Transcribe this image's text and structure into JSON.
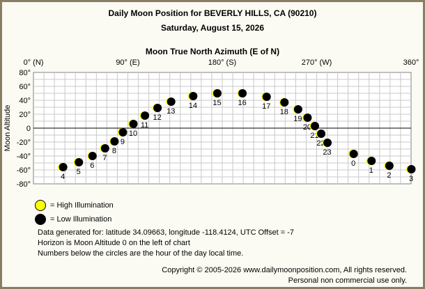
{
  "title": "Daily Moon Position for BEVERLY HILLS, CA (90210)",
  "subtitle": "Saturday, August 15, 2026",
  "chart_data": {
    "type": "scatter",
    "xlabel": "Moon True North Azimuth (E of N)",
    "ylabel": "Moon Altitude",
    "xlim": [
      0,
      360
    ],
    "ylim": [
      -80,
      80
    ],
    "x_ticks": [
      {
        "value": 0,
        "label": "0° (N)"
      },
      {
        "value": 90,
        "label": "90° (E)"
      },
      {
        "value": 180,
        "label": "180° (S)"
      },
      {
        "value": 270,
        "label": "270° (W)"
      },
      {
        "value": 360,
        "label": "360°"
      }
    ],
    "y_ticks": [
      {
        "value": 80,
        "label": "80°"
      },
      {
        "value": 60,
        "label": "60°"
      },
      {
        "value": 40,
        "label": "40°"
      },
      {
        "value": 20,
        "label": "20°"
      },
      {
        "value": 0,
        "label": "0"
      },
      {
        "value": -20,
        "label": "-20°"
      },
      {
        "value": -40,
        "label": "-40°"
      },
      {
        "value": -60,
        "label": "-60°"
      },
      {
        "value": -80,
        "label": "-80°"
      }
    ],
    "grid": true,
    "horizon_line": 0,
    "points": [
      {
        "hour": "4",
        "az": 28,
        "alt": -56
      },
      {
        "hour": "5",
        "az": 43,
        "alt": -49
      },
      {
        "hour": "6",
        "az": 56,
        "alt": -40
      },
      {
        "hour": "7",
        "az": 68,
        "alt": -29
      },
      {
        "hour": "8",
        "az": 77,
        "alt": -19
      },
      {
        "hour": "9",
        "az": 85,
        "alt": -6
      },
      {
        "hour": "10",
        "az": 95,
        "alt": 6
      },
      {
        "hour": "11",
        "az": 106,
        "alt": 18
      },
      {
        "hour": "12",
        "az": 118,
        "alt": 29
      },
      {
        "hour": "13",
        "az": 131,
        "alt": 38
      },
      {
        "hour": "14",
        "az": 152,
        "alt": 46
      },
      {
        "hour": "15",
        "az": 175,
        "alt": 50
      },
      {
        "hour": "16",
        "az": 199,
        "alt": 50
      },
      {
        "hour": "17",
        "az": 222,
        "alt": 45
      },
      {
        "hour": "18",
        "az": 239,
        "alt": 37
      },
      {
        "hour": "19",
        "az": 252,
        "alt": 27
      },
      {
        "hour": "20",
        "az": 261,
        "alt": 15
      },
      {
        "hour": "21",
        "az": 268,
        "alt": 3
      },
      {
        "hour": "22",
        "az": 274,
        "alt": -8
      },
      {
        "hour": "23",
        "az": 280,
        "alt": -21
      },
      {
        "hour": "0",
        "az": 305,
        "alt": -37
      },
      {
        "hour": "1",
        "az": 322,
        "alt": -47
      },
      {
        "hour": "2",
        "az": 339,
        "alt": -54
      },
      {
        "hour": "3",
        "az": 360,
        "alt": -59
      }
    ]
  },
  "legend": {
    "high": "= High Illumination",
    "low": "= Low Illumination"
  },
  "info": {
    "line1": "Data generated for: latitude 34.09663, longitude -118.4124, UTC Offset = -7",
    "line2": "Horizon is Moon Altitude 0 on the left of chart",
    "line3": "Numbers below the circles are the hour of the day local time."
  },
  "copyright": {
    "line1": "Copyright © 2005-2026 www.dailymoonposition.com, All rights reserved.",
    "line2": "Personal non commercial use only."
  },
  "colors": {
    "frame": "#8a7d64",
    "background": "#fbfbf3",
    "grid": "#c8c8c8",
    "moon_low": "#000000",
    "moon_high": "#ffff00"
  }
}
